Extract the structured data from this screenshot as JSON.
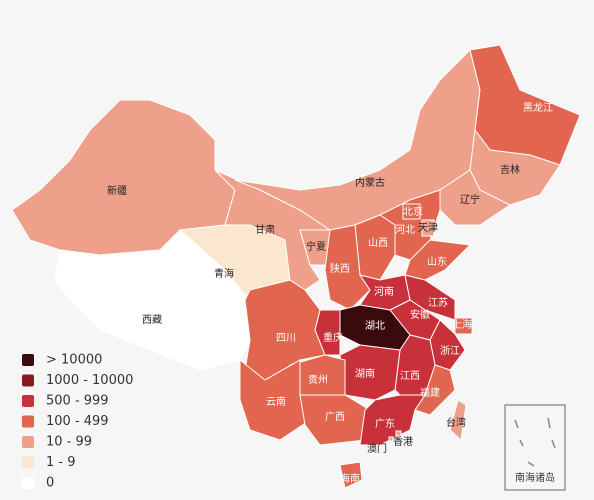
{
  "legend": [
    {
      "label": "> 10000",
      "color": "#3a0a0c"
    },
    {
      "label": "1000 - 10000",
      "color": "#8a1a1f"
    },
    {
      "label": "500 - 999",
      "color": "#c8313a"
    },
    {
      "label": "100 - 499",
      "color": "#e2654f"
    },
    {
      "label": "10 - 99",
      "color": "#eea08a"
    },
    {
      "label": "1 - 9",
      "color": "#fbe7cf"
    },
    {
      "label": "0",
      "color": "#ffffff"
    }
  ],
  "regions": [
    {
      "name": "新疆",
      "color": "#eea08a"
    },
    {
      "name": "西藏",
      "color": "#ffffff"
    },
    {
      "name": "青海",
      "color": "#fbe7cf"
    },
    {
      "name": "甘肃",
      "color": "#eea08a"
    },
    {
      "name": "内蒙古",
      "color": "#eea08a"
    },
    {
      "name": "黑龙江",
      "color": "#e2654f"
    },
    {
      "name": "吉林",
      "color": "#eea08a"
    },
    {
      "name": "辽宁",
      "color": "#eea08a"
    },
    {
      "name": "河北",
      "color": "#e2654f"
    },
    {
      "name": "北京",
      "color": "#e2654f"
    },
    {
      "name": "天津",
      "color": "#eea08a"
    },
    {
      "name": "山西",
      "color": "#e2654f"
    },
    {
      "name": "山东",
      "color": "#e2654f"
    },
    {
      "name": "宁夏",
      "color": "#eea08a"
    },
    {
      "name": "陕西",
      "color": "#e2654f"
    },
    {
      "name": "河南",
      "color": "#c8313a"
    },
    {
      "name": "江苏",
      "color": "#c8313a"
    },
    {
      "name": "安徽",
      "color": "#c8313a"
    },
    {
      "name": "上海",
      "color": "#e2654f"
    },
    {
      "name": "湖北",
      "color": "#3a0a0c"
    },
    {
      "name": "重庆",
      "color": "#c8313a"
    },
    {
      "name": "四川",
      "color": "#e2654f"
    },
    {
      "name": "浙江",
      "color": "#c8313a"
    },
    {
      "name": "江西",
      "color": "#c8313a"
    },
    {
      "name": "湖南",
      "color": "#c8313a"
    },
    {
      "name": "贵州",
      "color": "#e2654f"
    },
    {
      "name": "福建",
      "color": "#e2654f"
    },
    {
      "name": "云南",
      "color": "#e2654f"
    },
    {
      "name": "广西",
      "color": "#e2654f"
    },
    {
      "name": "广东",
      "color": "#c8313a"
    },
    {
      "name": "台湾",
      "color": "#eea08a"
    },
    {
      "name": "香港",
      "color": "#eea08a"
    },
    {
      "name": "澳门",
      "color": "#eea08a"
    },
    {
      "name": "海南",
      "color": "#e2654f"
    }
  ],
  "inset": "南海诸岛"
}
